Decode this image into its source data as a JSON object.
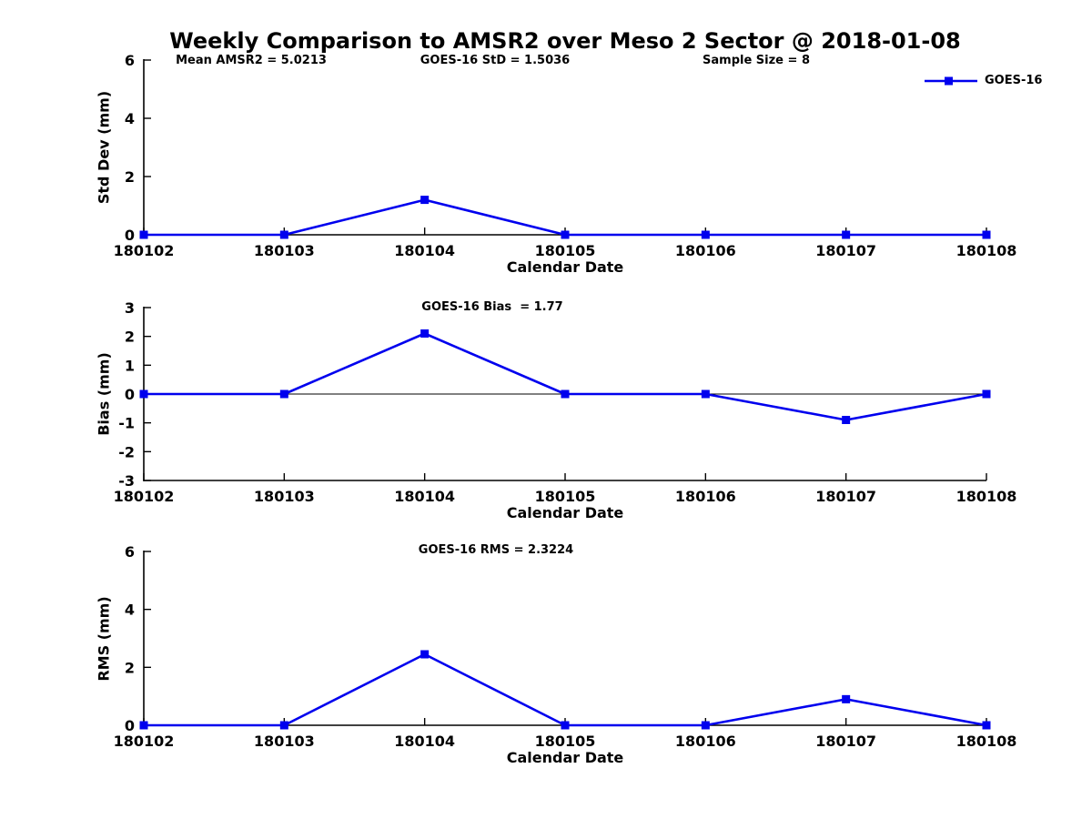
{
  "page": {
    "title": "Weekly Comparison to AMSR2 over Meso 2 Sector @ 2018-01-08"
  },
  "legend": {
    "label": "GOES-16",
    "color": "#0000EE",
    "position": "top-right"
  },
  "chart_data": [
    {
      "type": "line",
      "ylabel": "Std Dev (mm)",
      "xlabel": "Calendar Date",
      "ylim": [
        0,
        6
      ],
      "yticks": [
        0,
        2,
        4,
        6
      ],
      "categories": [
        "180102",
        "180103",
        "180104",
        "180105",
        "180106",
        "180107",
        "180108"
      ],
      "series": [
        {
          "name": "GOES-16",
          "color": "#0000EE",
          "marker": "square",
          "values": [
            0,
            0,
            1.2,
            0,
            0,
            0,
            0
          ]
        }
      ],
      "annotations": [
        {
          "text": "Mean AMSR2 = 5.0213"
        },
        {
          "text": "GOES-16 StD = 1.5036"
        },
        {
          "text": "Sample Size = 8"
        }
      ],
      "grid": false,
      "legend_position": "top-right"
    },
    {
      "type": "line",
      "ylabel": "Bias (mm)",
      "xlabel": "Calendar Date",
      "ylim": [
        -3,
        3
      ],
      "yticks": [
        -3,
        -2,
        -1,
        0,
        1,
        2,
        3
      ],
      "zero_line": true,
      "categories": [
        "180102",
        "180103",
        "180104",
        "180105",
        "180106",
        "180107",
        "180108"
      ],
      "series": [
        {
          "name": "GOES-16",
          "color": "#0000EE",
          "marker": "square",
          "values": [
            0,
            0,
            2.1,
            0,
            0,
            -0.9,
            0
          ]
        }
      ],
      "annotations": [
        {
          "text": "GOES-16 Bias  = 1.77"
        }
      ],
      "grid": false
    },
    {
      "type": "line",
      "ylabel": "RMS (mm)",
      "xlabel": "Calendar Date",
      "ylim": [
        0,
        6
      ],
      "yticks": [
        0,
        2,
        4,
        6
      ],
      "categories": [
        "180102",
        "180103",
        "180104",
        "180105",
        "180106",
        "180107",
        "180108"
      ],
      "series": [
        {
          "name": "GOES-16",
          "color": "#0000EE",
          "marker": "square",
          "values": [
            0,
            0,
            2.45,
            0,
            0,
            0.9,
            0
          ]
        }
      ],
      "annotations": [
        {
          "text": "GOES-16 RMS = 2.3224"
        }
      ],
      "grid": false
    }
  ]
}
